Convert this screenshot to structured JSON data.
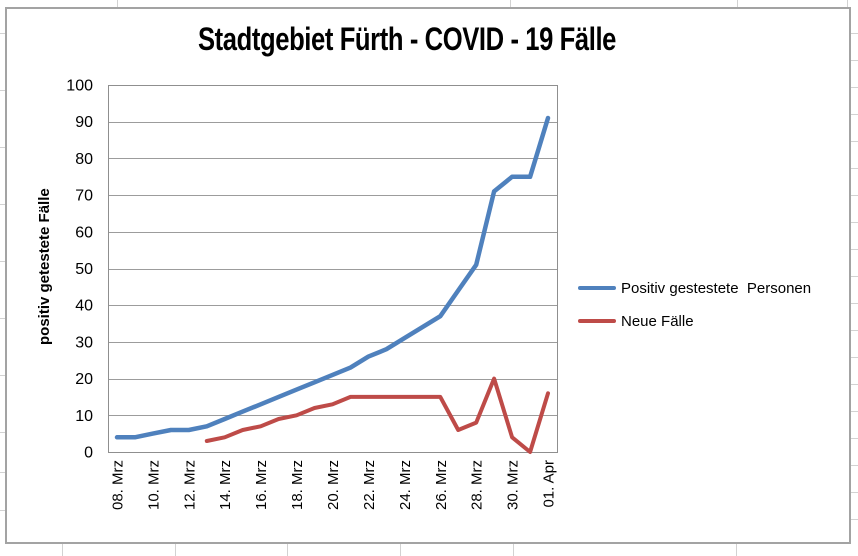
{
  "chart_data": {
    "type": "line",
    "title": "Stadtgebiet Fürth - COVID - 19 Fälle",
    "ylabel": "positiv getestete Fälle",
    "xlabel": "",
    "ylim": [
      0,
      100
    ],
    "y_ticks": [
      0,
      10,
      20,
      30,
      40,
      50,
      60,
      70,
      80,
      90,
      100
    ],
    "grid": true,
    "legend_position": "right",
    "x_tick_labels": [
      "08. Mrz",
      "10. Mrz",
      "12. Mrz",
      "14. Mrz",
      "16. Mrz",
      "18. Mrz",
      "20. Mrz",
      "22. Mrz",
      "24. Mrz",
      "26. Mrz",
      "28. Mrz",
      "30. Mrz",
      "01. Apr"
    ],
    "categories": [
      "08. Mrz",
      "09. Mrz",
      "10. Mrz",
      "11. Mrz",
      "12. Mrz",
      "13. Mrz",
      "14. Mrz",
      "15. Mrz",
      "16. Mrz",
      "17. Mrz",
      "18. Mrz",
      "19. Mrz",
      "20. Mrz",
      "21. Mrz",
      "22. Mrz",
      "23. Mrz",
      "24. Mrz",
      "25. Mrz",
      "26. Mrz",
      "27. Mrz",
      "28. Mrz",
      "29. Mrz",
      "30. Mrz",
      "31. Mrz",
      "01. Apr"
    ],
    "series": [
      {
        "name": "Positiv gestestete  Personen",
        "color": "#4F81BD",
        "values": [
          4,
          4,
          5,
          6,
          6,
          7,
          9,
          11,
          13,
          15,
          17,
          19,
          21,
          23,
          26,
          28,
          31,
          34,
          37,
          44,
          51,
          71,
          75,
          75,
          91
        ]
      },
      {
        "name": "Neue Fälle",
        "color": "#BE4B48",
        "values": [
          null,
          null,
          null,
          null,
          null,
          3,
          4,
          6,
          7,
          9,
          10,
          12,
          13,
          15,
          15,
          15,
          15,
          15,
          15,
          6,
          8,
          20,
          4,
          0,
          16
        ]
      }
    ]
  },
  "colors": {
    "gridline": "#9c9c9c",
    "plot_border": "#8f8f8f",
    "chart_border": "#a3a3a3",
    "worksheet_grid": "#d2d2d2",
    "tick_text": "#000000"
  }
}
